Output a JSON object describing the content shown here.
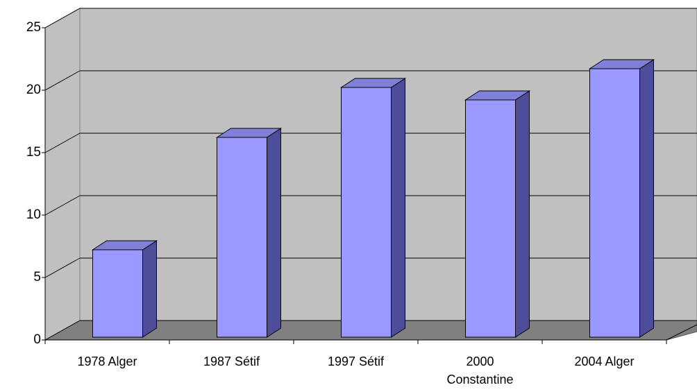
{
  "chart_data": {
    "type": "bar",
    "categories": [
      "1978 Alger",
      "1987 Sétif",
      "1997 Sétif",
      "2000 Constantine",
      "2004 Alger"
    ],
    "values": [
      7,
      16,
      20,
      19,
      21.5
    ],
    "color": "#9999ff",
    "ylim": [
      0,
      25
    ],
    "yticks": [
      0,
      5,
      10,
      15,
      20,
      25
    ],
    "grid": true
  }
}
